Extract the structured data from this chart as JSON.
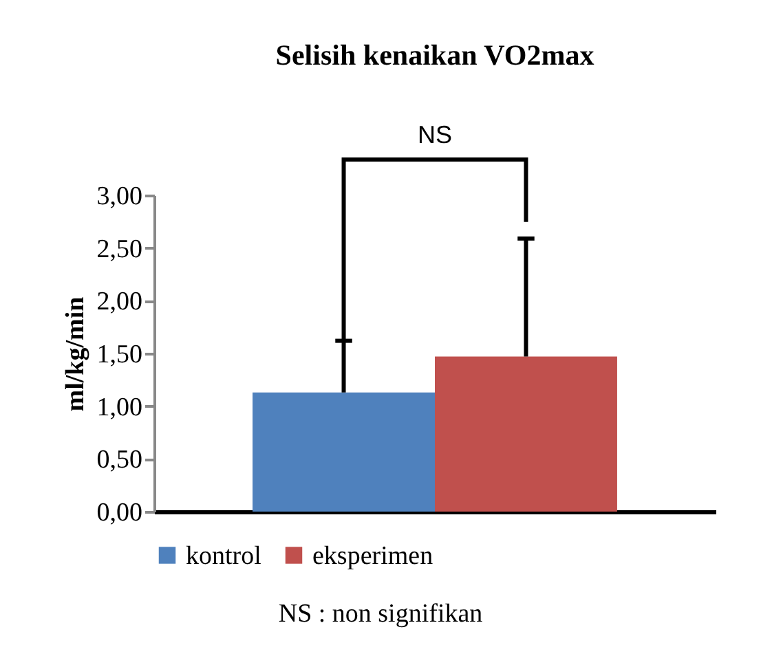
{
  "chart_data": {
    "type": "bar",
    "title": "Selisih kenaikan VO2max",
    "ylabel": "ml/kg/min",
    "categories": [
      null
    ],
    "series": [
      {
        "name": "kontrol",
        "color": "#4f81bd",
        "values": [
          1.13
        ],
        "errors": [
          [
            1.13,
            1.62
          ]
        ]
      },
      {
        "name": "eksperimen",
        "color": "#c0504d",
        "values": [
          1.47
        ],
        "errors": [
          [
            1.47,
            2.59
          ]
        ]
      }
    ],
    "ylim": [
      0,
      3
    ],
    "yticks": [
      {
        "value": 0,
        "label": "0,00"
      },
      {
        "value": 0.5,
        "label": "0,50"
      },
      {
        "value": 1,
        "label": "1,00"
      },
      {
        "value": 1.5,
        "label": "1,50"
      },
      {
        "value": 2,
        "label": "2,00"
      },
      {
        "value": 2.5,
        "label": "2,50"
      },
      {
        "value": 3,
        "label": "3,00"
      }
    ],
    "grid": false,
    "legend": "bottom",
    "annotations": [
      "NS",
      "NS : non signifikan"
    ]
  }
}
